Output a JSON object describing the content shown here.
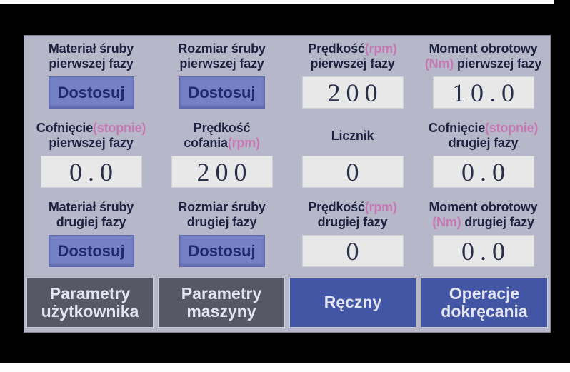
{
  "colors": {
    "screen_bg": "#b6b8ca",
    "label_text": "#1c2240",
    "unit_pink": "#c777b4",
    "adjust_button_bg": "#7580c5",
    "adjust_button_text": "#1f2b6d",
    "value_field_bg": "#e7e8e7",
    "value_text": "#2a3048",
    "nav_grey_bg": "#565866",
    "nav_blue_bg": "#4355a5",
    "nav_text": "#e2e4f0"
  },
  "param_rows": [
    {
      "cells": [
        {
          "name": "screw-material-phase1",
          "label": [
            [
              {
                "t": "Materiał śruby"
              }
            ],
            [
              {
                "t": "pierwszej fazy"
              }
            ]
          ],
          "widget": {
            "type": "button",
            "text": "Dostosuj"
          }
        },
        {
          "name": "screw-size-phase1",
          "label": [
            [
              {
                "t": "Rozmiar śruby"
              }
            ],
            [
              {
                "t": "pierwszej fazy"
              }
            ]
          ],
          "widget": {
            "type": "button",
            "text": "Dostosuj"
          }
        },
        {
          "name": "speed-rpm-phase1",
          "label": [
            [
              {
                "t": "Prędkość"
              },
              {
                "t": "(rpm)",
                "pink": true
              }
            ],
            [
              {
                "t": "pierwszej fazy"
              }
            ]
          ],
          "widget": {
            "type": "value",
            "value": "200"
          }
        },
        {
          "name": "torque-nm-phase1",
          "label": [
            [
              {
                "t": "Moment obrotowy"
              }
            ],
            [
              {
                "t": "(Nm)",
                "pink": true
              },
              {
                "t": " pierwszej fazy"
              }
            ]
          ],
          "widget": {
            "type": "value",
            "value": "10.0"
          }
        }
      ]
    },
    {
      "cells": [
        {
          "name": "reverse-degrees-phase1",
          "label": [
            [
              {
                "t": "Cofnięcie"
              },
              {
                "t": "(stopnie)",
                "pink": true
              }
            ],
            [
              {
                "t": "pierwszej fazy"
              }
            ]
          ],
          "widget": {
            "type": "value",
            "value": "0.0"
          }
        },
        {
          "name": "reverse-speed-rpm",
          "label": [
            [
              {
                "t": "Prędkość"
              }
            ],
            [
              {
                "t": "cofania"
              },
              {
                "t": "(rpm)",
                "pink": true
              }
            ]
          ],
          "widget": {
            "type": "value",
            "value": "200"
          }
        },
        {
          "name": "counter",
          "label": [
            [
              {
                "t": "Licznik"
              }
            ]
          ],
          "widget": {
            "type": "value",
            "value": "0"
          }
        },
        {
          "name": "reverse-degrees-phase2",
          "label": [
            [
              {
                "t": "Cofnięcie"
              },
              {
                "t": "(stopnie)",
                "pink": true
              }
            ],
            [
              {
                "t": "drugiej fazy"
              }
            ]
          ],
          "widget": {
            "type": "value",
            "value": "0.0"
          }
        }
      ]
    },
    {
      "cells": [
        {
          "name": "screw-material-phase2",
          "label": [
            [
              {
                "t": "Materiał śruby"
              }
            ],
            [
              {
                "t": "drugiej fazy"
              }
            ]
          ],
          "widget": {
            "type": "button",
            "text": "Dostosuj"
          }
        },
        {
          "name": "screw-size-phase2",
          "label": [
            [
              {
                "t": "Rozmiar śruby"
              }
            ],
            [
              {
                "t": "drugiej fazy"
              }
            ]
          ],
          "widget": {
            "type": "button",
            "text": "Dostosuj"
          }
        },
        {
          "name": "speed-rpm-phase2",
          "label": [
            [
              {
                "t": "Prędkość"
              },
              {
                "t": "(rpm)",
                "pink": true
              }
            ],
            [
              {
                "t": "drugiej fazy"
              }
            ]
          ],
          "widget": {
            "type": "value",
            "value": "0"
          }
        },
        {
          "name": "torque-nm-phase2",
          "label": [
            [
              {
                "t": "Moment obrotowy"
              }
            ],
            [
              {
                "t": "(Nm)",
                "pink": true
              },
              {
                "t": " drugiej fazy"
              }
            ]
          ],
          "widget": {
            "type": "value",
            "value": "0.0"
          }
        }
      ]
    }
  ],
  "bottom_bar": {
    "buttons": [
      {
        "name": "user-parameters",
        "style": "grey",
        "lines": [
          "Parametry",
          "użytkownika"
        ]
      },
      {
        "name": "machine-parameters",
        "style": "grey",
        "lines": [
          "Parametry",
          "maszyny"
        ]
      },
      {
        "name": "manual",
        "style": "blue",
        "lines": [
          "Ręczny"
        ]
      },
      {
        "name": "tightening-operations",
        "style": "blue",
        "lines": [
          "Operacje",
          "dokręcania"
        ]
      }
    ]
  }
}
